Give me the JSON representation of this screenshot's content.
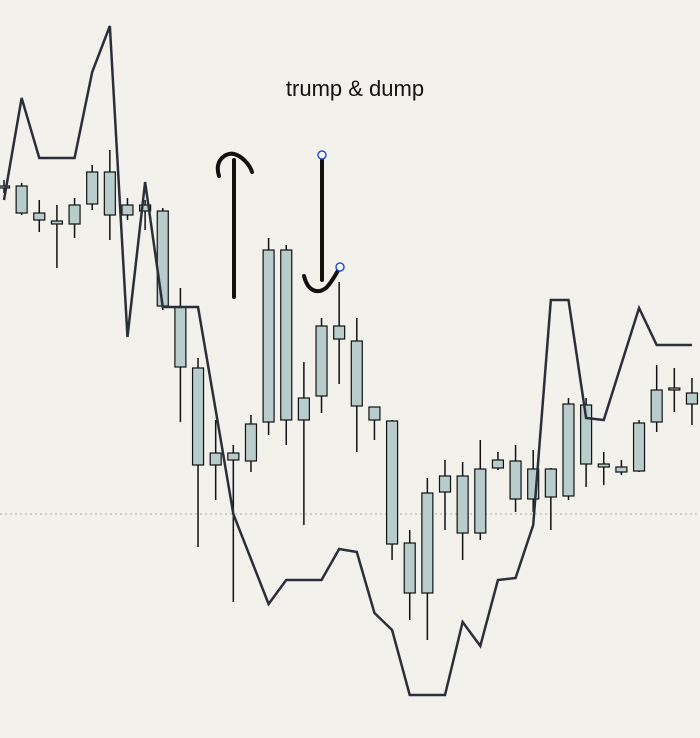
{
  "chart_data": {
    "type": "candlestick",
    "title": "trump & dump",
    "categories": [
      null,
      null,
      null,
      null,
      null,
      null,
      null,
      null,
      null,
      null,
      null,
      null,
      null,
      null,
      null,
      null,
      null,
      null,
      null,
      null,
      null,
      null,
      null,
      null,
      null,
      null,
      null,
      null,
      null,
      null,
      null,
      null,
      null,
      null,
      null,
      null,
      null,
      null,
      null,
      null
    ],
    "open": [
      550,
      525,
      518,
      514,
      514,
      534,
      523,
      523,
      527,
      432,
      371,
      273,
      273,
      278,
      277,
      316,
      318,
      318,
      342,
      399,
      332,
      318,
      194,
      145,
      145,
      246,
      205,
      205,
      270,
      239,
      239,
      241,
      242,
      274,
      271,
      266,
      267,
      316,
      348,
      334
    ],
    "high": [
      558,
      555,
      538,
      533,
      540,
      573,
      588,
      540,
      538,
      530,
      450,
      380,
      318,
      293,
      323,
      500,
      493,
      376,
      420,
      456,
      420,
      331,
      318,
      208,
      260,
      278,
      276,
      298,
      286,
      293,
      288,
      270,
      340,
      340,
      286,
      278,
      318,
      373,
      370,
      360
    ],
    "low": [
      545,
      523,
      506,
      470,
      500,
      528,
      498,
      518,
      508,
      428,
      316,
      191,
      238,
      136,
      266,
      303,
      293,
      213,
      325,
      354,
      286,
      298,
      178,
      118,
      98,
      208,
      178,
      198,
      268,
      226,
      226,
      208,
      238,
      251,
      253,
      263,
      266,
      306,
      326,
      313
    ],
    "close": [
      552,
      552,
      525,
      517,
      533,
      566,
      566,
      533,
      533,
      527,
      431,
      370,
      285,
      285,
      314,
      488,
      488,
      340,
      412,
      412,
      397,
      331,
      317,
      195,
      245,
      262,
      262,
      269,
      278,
      277,
      269,
      269,
      334,
      333,
      274,
      271,
      315,
      348,
      350,
      345
    ],
    "candle_color": "#b8cccb",
    "line": {
      "values": [
        538,
        640,
        580,
        580,
        580,
        666,
        712,
        401,
        556,
        431,
        431,
        431,
        328,
        224,
        179,
        134,
        158,
        158,
        158,
        189,
        186,
        125,
        108,
        43,
        43,
        43,
        116,
        92,
        158,
        160,
        213,
        438,
        438,
        320,
        318,
        374,
        430,
        393,
        393,
        393
      ],
      "color": "#2a2f3a"
    },
    "reference_line": 224,
    "ylim": [
      0,
      738
    ]
  }
}
